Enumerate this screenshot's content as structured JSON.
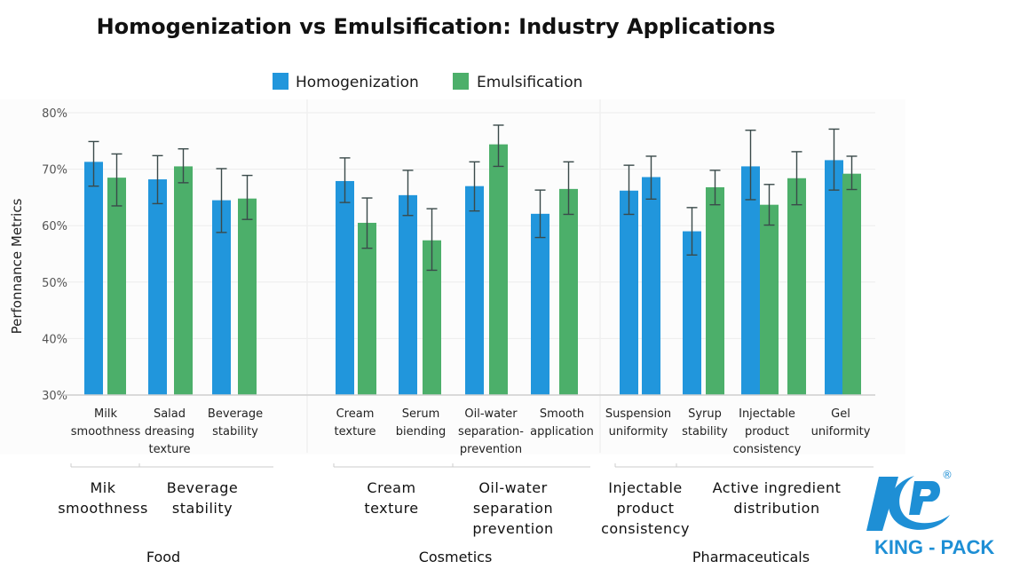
{
  "chart_data": {
    "type": "bar",
    "title": "Homogenization vs Emulsification: Industry Applications",
    "ylabel": "Perfonnance Metrics",
    "xlabel": "",
    "ylim": [
      30,
      80
    ],
    "yticks": [
      30,
      40,
      50,
      60,
      70,
      80
    ],
    "ytick_labels": [
      "30%",
      "40%",
      "50%",
      "60%",
      "70%",
      "80%"
    ],
    "grid": true,
    "legend_position": "top-center",
    "legend": [
      {
        "name": "Homogenization",
        "color": "#2196dc"
      },
      {
        "name": "Emulsification",
        "color": "#4caf6a"
      }
    ],
    "groups": [
      {
        "name": "Food",
        "subgroups": [
          "Mik\nsmoothness",
          "Beverage\nstability"
        ],
        "categories": [
          {
            "label": "Milk\nsmoothness",
            "bars": [
              {
                "series": "Homogenization",
                "value": 71.3,
                "err_low": 67.0,
                "err_high": 74.9
              },
              {
                "series": "Emulsification",
                "value": 68.5,
                "err_low": 63.5,
                "err_high": 72.7
              }
            ]
          },
          {
            "label": "Salad\ndreasing\ntexture",
            "bars": [
              {
                "series": "Homogenization",
                "value": 68.2,
                "err_low": 63.9,
                "err_high": 72.4
              },
              {
                "series": "Emulsification",
                "value": 70.5,
                "err_low": 67.6,
                "err_high": 73.6
              }
            ]
          },
          {
            "label": "Beverage\nstability",
            "bars": [
              {
                "series": "Homogenization",
                "value": 64.5,
                "err_low": 58.8,
                "err_high": 70.1
              },
              {
                "series": "Emulsification",
                "value": 64.8,
                "err_low": 61.1,
                "err_high": 68.9
              }
            ]
          }
        ]
      },
      {
        "name": "Cosmetics",
        "subgroups": [
          "Cream\ntexture",
          "Oil-water\nseparation\nprevention"
        ],
        "categories": [
          {
            "label": "Cream\ntexture",
            "bars": [
              {
                "series": "Homogenization",
                "value": 67.9,
                "err_low": 64.1,
                "err_high": 72.0
              },
              {
                "series": "Emulsification",
                "value": 60.5,
                "err_low": 56.0,
                "err_high": 64.9
              }
            ]
          },
          {
            "label": "Serum\nbiending",
            "bars": [
              {
                "series": "Homogenization",
                "value": 65.4,
                "err_low": 61.8,
                "err_high": 69.8
              },
              {
                "series": "Emulsification",
                "value": 57.4,
                "err_low": 52.1,
                "err_high": 63.0
              }
            ]
          },
          {
            "label": "Oil-water\nseparation-\nprevention",
            "bars": [
              {
                "series": "Homogenization",
                "value": 67.0,
                "err_low": 62.6,
                "err_high": 71.3
              },
              {
                "series": "Emulsification",
                "value": 74.4,
                "err_low": 70.5,
                "err_high": 77.8
              }
            ]
          },
          {
            "label": "Smooth\napplication",
            "bars": [
              {
                "series": "Homogenization",
                "value": 62.1,
                "err_low": 57.9,
                "err_high": 66.3
              },
              {
                "series": "Emulsification",
                "value": 66.5,
                "err_low": 62.0,
                "err_high": 71.3
              }
            ]
          }
        ]
      },
      {
        "name": "Pharmaceuticals",
        "subgroups": [
          "Injectable\nproduct\nconsistency",
          "Active ingredient\ndistribution"
        ],
        "categories": [
          {
            "label": "Suspension\nuniformity",
            "bars": [
              {
                "series": "Homogenization",
                "value": 66.2,
                "err_low": 62.0,
                "err_high": 70.7
              },
              {
                "series": "Homogenization",
                "value": 68.6,
                "err_low": 64.7,
                "err_high": 72.3
              }
            ]
          },
          {
            "label": "Syrup\nstability",
            "bars": [
              {
                "series": "Homogenization",
                "value": 59.0,
                "err_low": 54.8,
                "err_high": 63.2
              },
              {
                "series": "Emulsification",
                "value": 66.8,
                "err_low": 63.7,
                "err_high": 69.8
              }
            ]
          },
          {
            "label": "Injectable\nproduct\nconsistency",
            "bars": [
              {
                "series": "Homogenization",
                "value": 70.5,
                "err_low": 64.6,
                "err_high": 76.9
              },
              {
                "series": "Emulsification",
                "value": 63.7,
                "err_low": 60.1,
                "err_high": 67.3
              },
              {
                "series": "Emulsification",
                "value": 68.4,
                "err_low": 63.7,
                "err_high": 73.1
              }
            ]
          },
          {
            "label": "Gel\nuniformity",
            "bars": [
              {
                "series": "Homogenization",
                "value": 71.6,
                "err_low": 66.3,
                "err_high": 77.1
              },
              {
                "series": "Emulsification",
                "value": 69.2,
                "err_low": 66.4,
                "err_high": 72.3
              }
            ]
          }
        ]
      }
    ]
  },
  "logo": {
    "brand_text": "KING - PACK",
    "registered_mark": "®",
    "color": "#1e8fd5"
  }
}
